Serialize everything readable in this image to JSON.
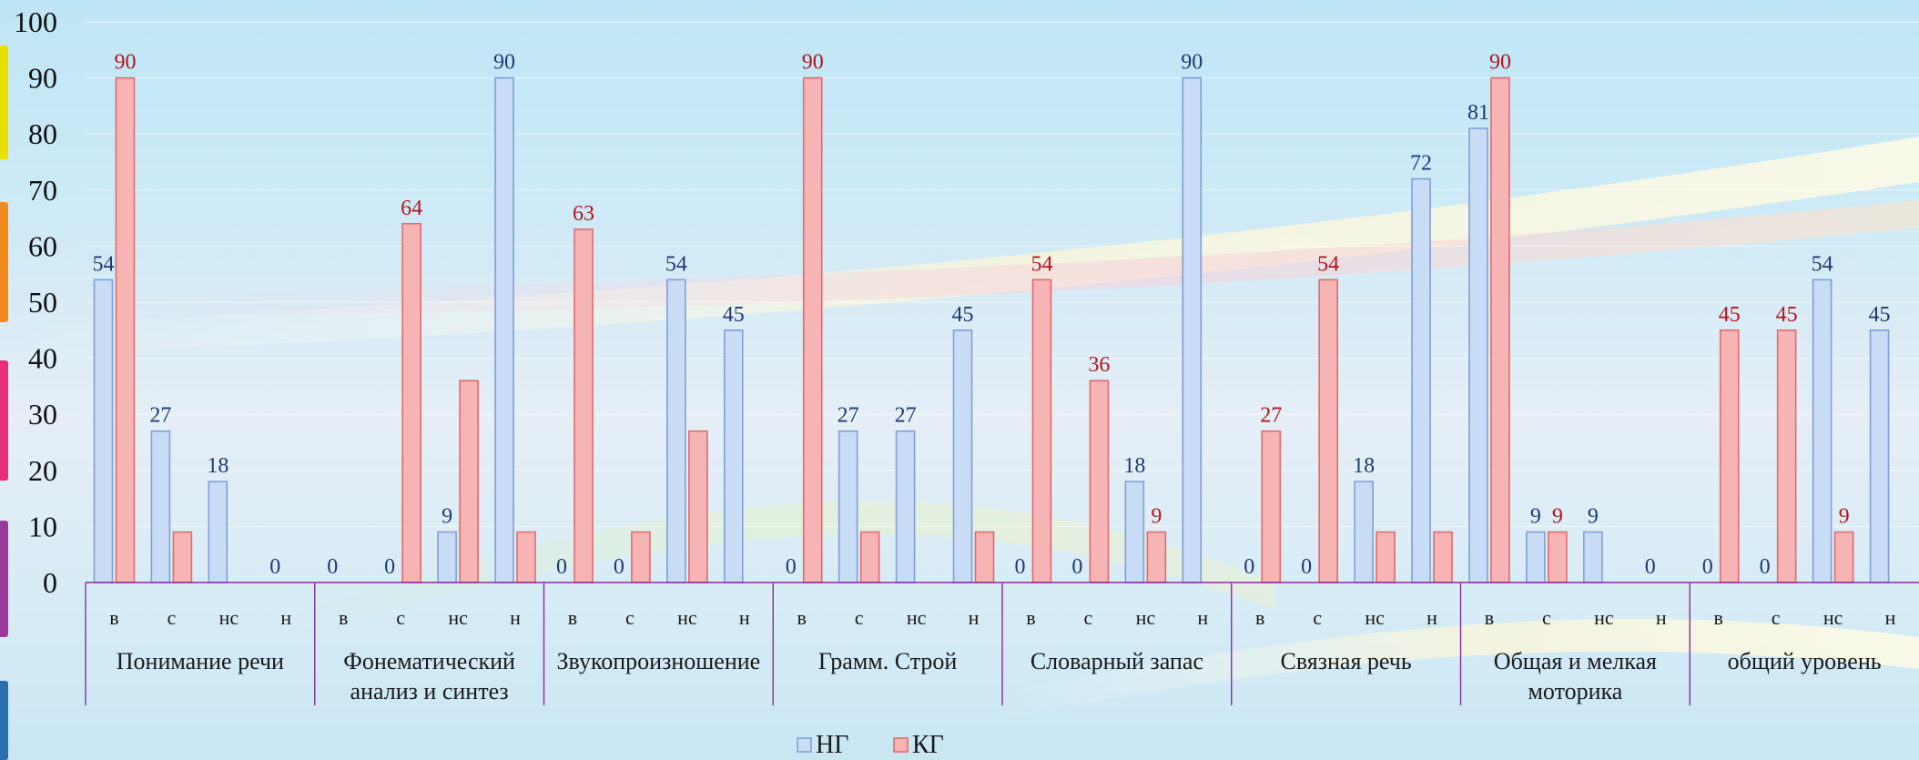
{
  "chart_data": {
    "type": "bar",
    "title": "",
    "xlabel": "",
    "ylabel": "",
    "ylim": [
      0,
      100
    ],
    "yticks": [
      0,
      10,
      20,
      30,
      40,
      50,
      60,
      70,
      80,
      90,
      100
    ],
    "grid": true,
    "legend_position": "bottom-center",
    "subcategories": [
      "в",
      "с",
      "нс",
      "н"
    ],
    "groups": [
      "Понимание речи",
      "Фонематический\nанализ и синтез",
      "Звукопроизношение",
      "Грамм. Строй",
      "Словарный запас",
      "Связная речь",
      "Общая и мелкая\nмоторика",
      "общий уровень"
    ],
    "series": [
      {
        "name": "НГ",
        "color": "#c9dcf6",
        "border": "#7f9fd6",
        "label_color": "#1f3a73",
        "values": [
          [
            54,
            27,
            18,
            0
          ],
          [
            0,
            0,
            9,
            90
          ],
          [
            0,
            0,
            54,
            45
          ],
          [
            0,
            27,
            27,
            45
          ],
          [
            0,
            0,
            18,
            90
          ],
          [
            0,
            0,
            18,
            72
          ],
          [
            81,
            9,
            9,
            0
          ],
          [
            0,
            0,
            54,
            45
          ]
        ]
      },
      {
        "name": "КГ",
        "color": "#f7b4b4",
        "border": "#e06b6b",
        "label_color": "#b3141e",
        "values": [
          [
            90,
            9,
            0,
            0
          ],
          [
            0,
            64,
            36,
            9
          ],
          [
            63,
            9,
            27,
            0
          ],
          [
            90,
            9,
            0,
            9
          ],
          [
            54,
            36,
            9,
            0
          ],
          [
            27,
            54,
            9,
            9
          ],
          [
            90,
            9,
            0,
            0
          ],
          [
            45,
            45,
            9,
            0
          ]
        ]
      }
    ],
    "point_labels": {
      "НГ": [
        [
          54,
          27,
          18,
          0
        ],
        [
          0,
          0,
          9,
          90
        ],
        [
          0,
          0,
          54,
          45
        ],
        [
          0,
          27,
          27,
          45
        ],
        [
          0,
          0,
          18,
          90
        ],
        [
          0,
          0,
          18,
          72
        ],
        [
          81,
          9,
          9,
          0
        ],
        [
          0,
          0,
          54,
          45
        ]
      ],
      "КГ": [
        [
          90,
          null,
          null,
          null
        ],
        [
          null,
          64,
          null,
          null
        ],
        [
          63,
          null,
          null,
          null
        ],
        [
          90,
          null,
          null,
          null
        ],
        [
          54,
          36,
          9,
          null
        ],
        [
          27,
          54,
          null,
          null
        ],
        [
          90,
          9,
          null,
          null
        ],
        [
          45,
          45,
          9,
          null
        ]
      ]
    }
  },
  "decor": {
    "side_swatches": [
      "#e8e000",
      "#f08a1c",
      "#e6307a",
      "#9a3a9a",
      "#2a6fb0"
    ]
  }
}
